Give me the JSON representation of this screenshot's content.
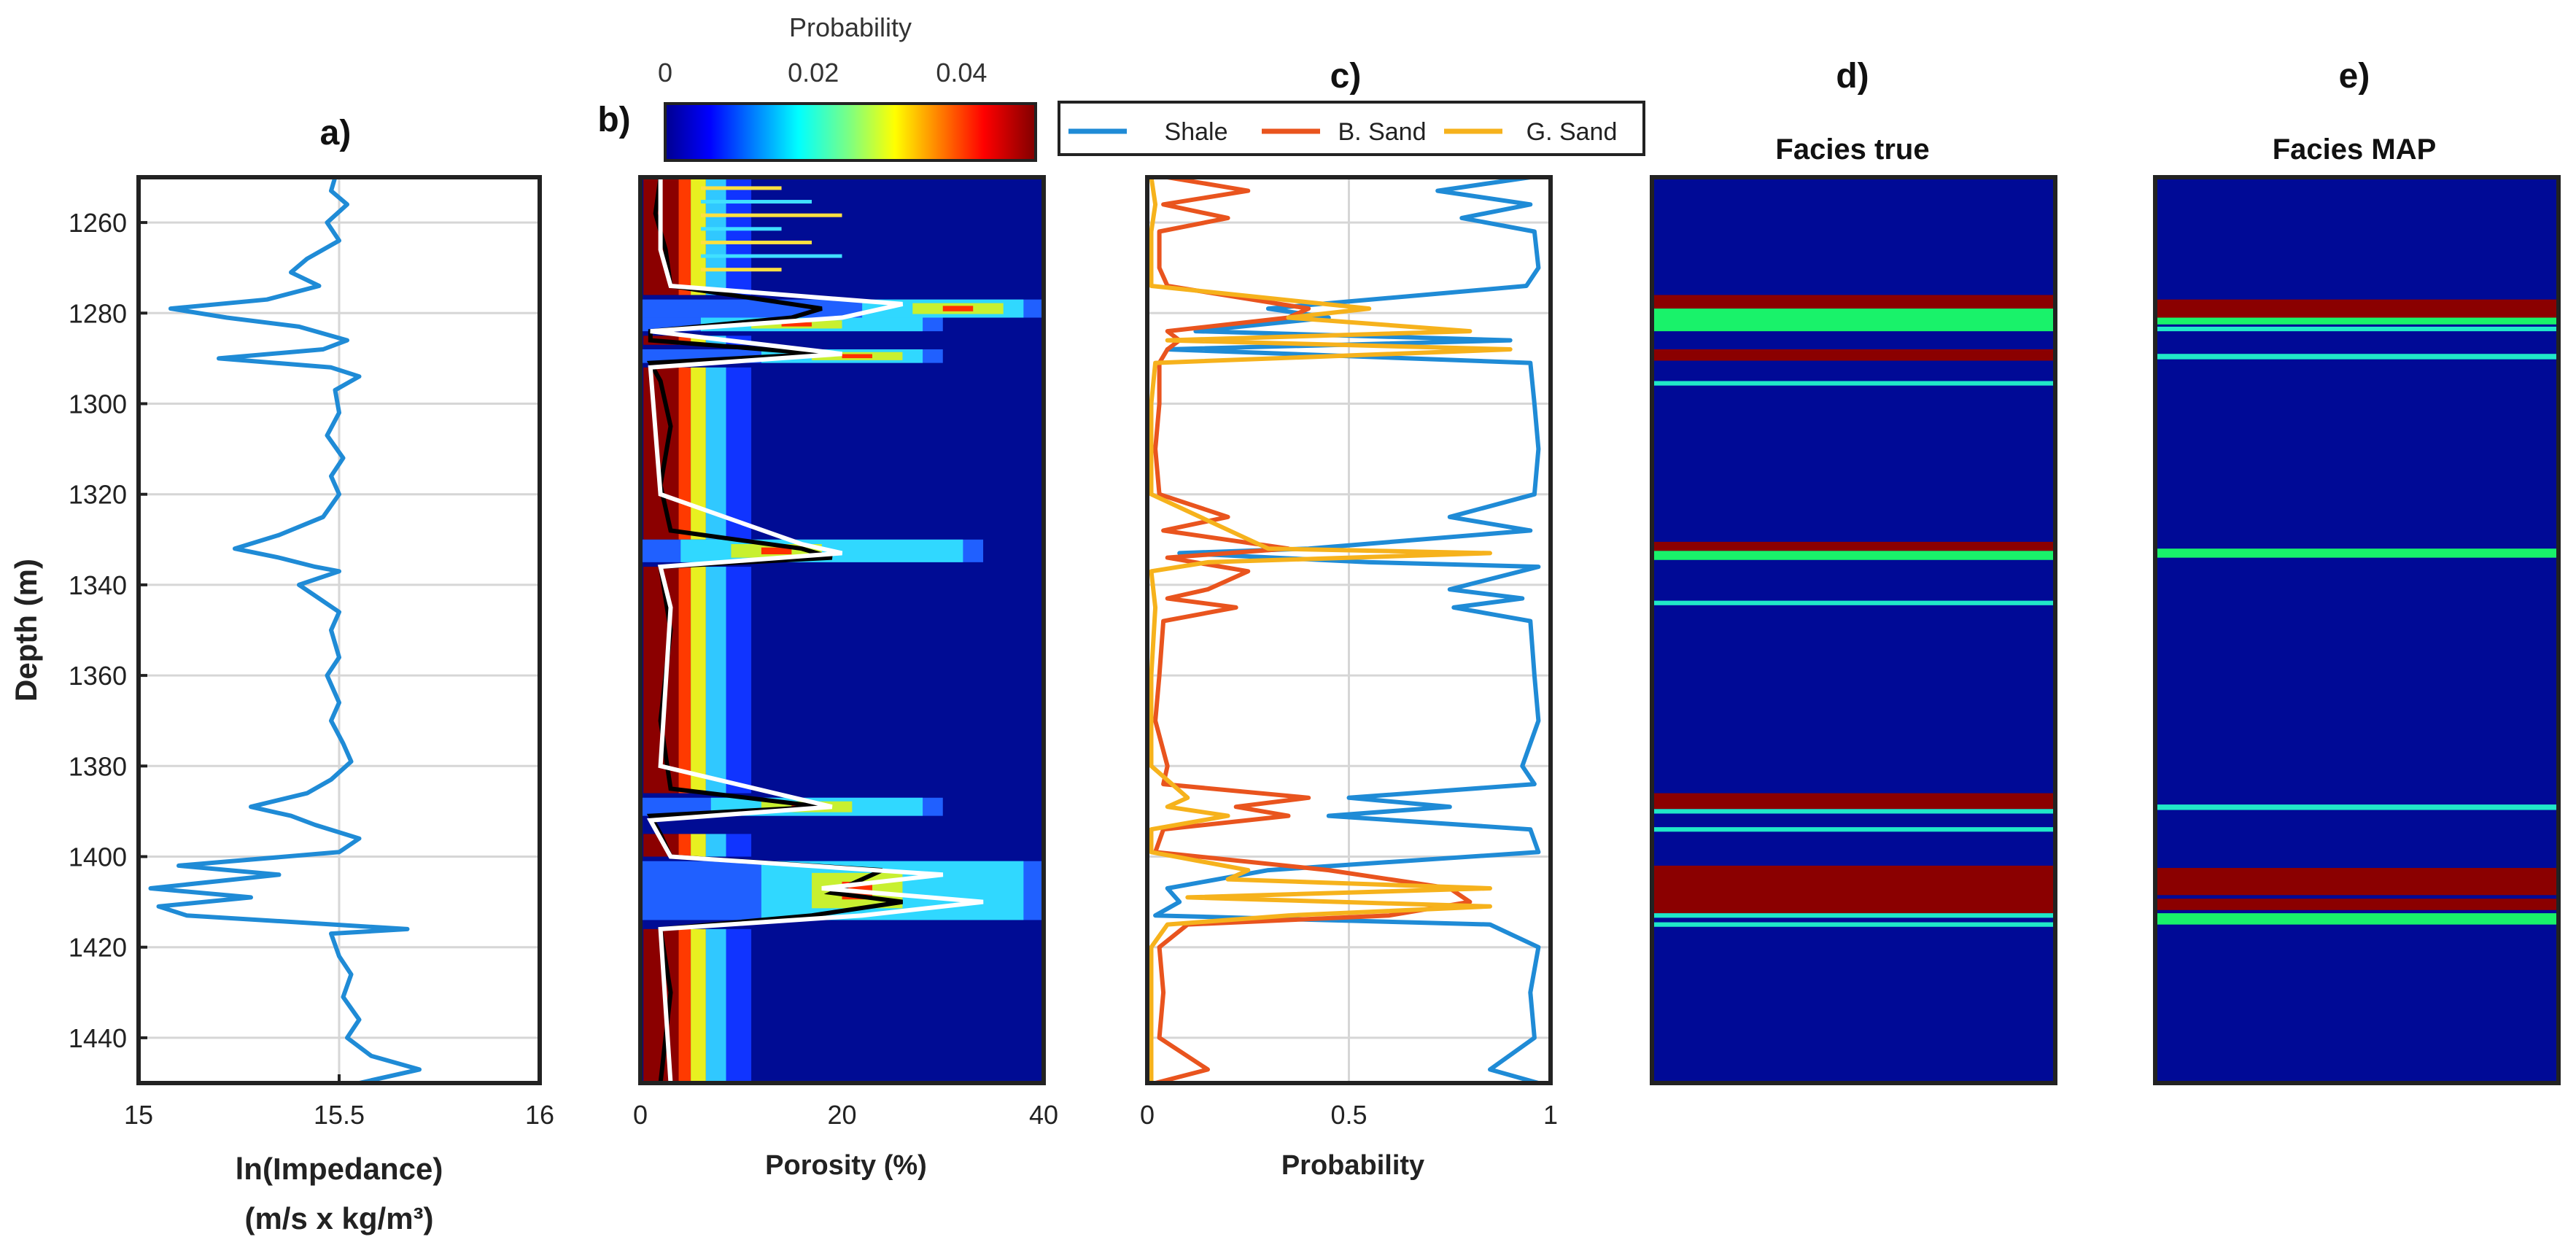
{
  "colors": {
    "blue_line": "#1f8bd6",
    "orange": "#e9541e",
    "yellow": "#f6b21c",
    "navy": "#000a96",
    "darkred": "#8b0000",
    "green": "#17f060",
    "cyan": "#20e8c8",
    "grid": "#d6d6d6",
    "axis": "#222222"
  },
  "chart_data": [
    {
      "id": "a",
      "type": "line",
      "panel_label": "a)",
      "xlabel": "ln(Impedance)",
      "xlabel_units": "(m/s x kg/m³)",
      "ylabel": "Depth (m)",
      "xlim": [
        15,
        16
      ],
      "ylim": [
        1250,
        1450
      ],
      "xticks": [
        "15",
        "15.5",
        "16"
      ],
      "yticks": [
        "1260",
        "1280",
        "1300",
        "1320",
        "1340",
        "1360",
        "1380",
        "1400",
        "1420",
        "1440"
      ],
      "grid": true,
      "series": [
        {
          "name": "ln(Impedance)",
          "points": [
            [
              15.49,
              1250
            ],
            [
              15.48,
              1253
            ],
            [
              15.52,
              1256
            ],
            [
              15.47,
              1260
            ],
            [
              15.5,
              1264
            ],
            [
              15.42,
              1268
            ],
            [
              15.38,
              1271
            ],
            [
              15.45,
              1274
            ],
            [
              15.32,
              1277
            ],
            [
              15.08,
              1279
            ],
            [
              15.22,
              1281
            ],
            [
              15.4,
              1283
            ],
            [
              15.52,
              1286
            ],
            [
              15.46,
              1288
            ],
            [
              15.2,
              1290
            ],
            [
              15.48,
              1292
            ],
            [
              15.55,
              1294
            ],
            [
              15.49,
              1297
            ],
            [
              15.5,
              1302
            ],
            [
              15.47,
              1307
            ],
            [
              15.51,
              1312
            ],
            [
              15.48,
              1316
            ],
            [
              15.5,
              1320
            ],
            [
              15.46,
              1325
            ],
            [
              15.35,
              1329
            ],
            [
              15.24,
              1332
            ],
            [
              15.35,
              1334
            ],
            [
              15.44,
              1336
            ],
            [
              15.5,
              1337
            ],
            [
              15.4,
              1340
            ],
            [
              15.45,
              1343
            ],
            [
              15.5,
              1346
            ],
            [
              15.48,
              1350
            ],
            [
              15.5,
              1356
            ],
            [
              15.47,
              1360
            ],
            [
              15.5,
              1366
            ],
            [
              15.48,
              1370
            ],
            [
              15.51,
              1375
            ],
            [
              15.53,
              1379
            ],
            [
              15.48,
              1383
            ],
            [
              15.42,
              1386
            ],
            [
              15.28,
              1389
            ],
            [
              15.38,
              1391
            ],
            [
              15.44,
              1393
            ],
            [
              15.55,
              1396
            ],
            [
              15.5,
              1399
            ],
            [
              15.1,
              1402
            ],
            [
              15.35,
              1404
            ],
            [
              15.03,
              1407
            ],
            [
              15.28,
              1409
            ],
            [
              15.05,
              1411
            ],
            [
              15.12,
              1413
            ],
            [
              15.67,
              1416
            ],
            [
              15.48,
              1417
            ],
            [
              15.5,
              1422
            ],
            [
              15.53,
              1426
            ],
            [
              15.51,
              1431
            ],
            [
              15.55,
              1436
            ],
            [
              15.52,
              1440
            ],
            [
              15.58,
              1444
            ],
            [
              15.7,
              1447
            ],
            [
              15.55,
              1450
            ]
          ]
        }
      ]
    },
    {
      "id": "b",
      "type": "heatmap",
      "panel_label": "b)",
      "xlabel": "Porosity (%)",
      "xlim": [
        0,
        40
      ],
      "ylim": [
        1250,
        1450
      ],
      "xticks": [
        "0",
        "20",
        "40"
      ],
      "colorbar": {
        "title": "Probability",
        "ticks": [
          "0",
          "0.02",
          "0.04"
        ],
        "range": [
          0,
          0.05
        ]
      }
    },
    {
      "id": "c",
      "type": "line",
      "panel_label": "c)",
      "xlabel": "Probability",
      "xlim": [
        0,
        1
      ],
      "ylim": [
        1250,
        1450
      ],
      "xticks": [
        "0",
        "0.5",
        "1"
      ],
      "grid": true,
      "legend": [
        "Shale",
        "B. Sand",
        "G. Sand"
      ],
      "series": [
        {
          "name": "Shale",
          "points": [
            [
              0.95,
              1250
            ],
            [
              0.72,
              1253
            ],
            [
              0.95,
              1256
            ],
            [
              0.78,
              1259
            ],
            [
              0.96,
              1262
            ],
            [
              0.97,
              1270
            ],
            [
              0.94,
              1274
            ],
            [
              0.3,
              1279
            ],
            [
              0.45,
              1281
            ],
            [
              0.12,
              1284
            ],
            [
              0.9,
              1286
            ],
            [
              0.05,
              1288
            ],
            [
              0.95,
              1291
            ],
            [
              0.96,
              1300
            ],
            [
              0.97,
              1310
            ],
            [
              0.96,
              1320
            ],
            [
              0.75,
              1325
            ],
            [
              0.95,
              1328
            ],
            [
              0.4,
              1332
            ],
            [
              0.08,
              1333
            ],
            [
              0.55,
              1335
            ],
            [
              0.97,
              1336
            ],
            [
              0.75,
              1341
            ],
            [
              0.93,
              1343
            ],
            [
              0.76,
              1345
            ],
            [
              0.95,
              1348
            ],
            [
              0.96,
              1360
            ],
            [
              0.97,
              1370
            ],
            [
              0.93,
              1380
            ],
            [
              0.96,
              1384
            ],
            [
              0.5,
              1387
            ],
            [
              0.75,
              1389
            ],
            [
              0.45,
              1391
            ],
            [
              0.95,
              1394
            ],
            [
              0.97,
              1399
            ],
            [
              0.3,
              1403
            ],
            [
              0.05,
              1407
            ],
            [
              0.08,
              1410
            ],
            [
              0.02,
              1413
            ],
            [
              0.85,
              1415
            ],
            [
              0.97,
              1420
            ],
            [
              0.95,
              1430
            ],
            [
              0.96,
              1440
            ],
            [
              0.85,
              1447
            ],
            [
              0.97,
              1450
            ]
          ]
        },
        {
          "name": "B. Sand",
          "points": [
            [
              0.05,
              1250
            ],
            [
              0.25,
              1253
            ],
            [
              0.04,
              1256
            ],
            [
              0.2,
              1259
            ],
            [
              0.03,
              1262
            ],
            [
              0.03,
              1270
            ],
            [
              0.05,
              1274
            ],
            [
              0.4,
              1279
            ],
            [
              0.35,
              1281
            ],
            [
              0.05,
              1284
            ],
            [
              0.08,
              1286
            ],
            [
              0.05,
              1288
            ],
            [
              0.03,
              1291
            ],
            [
              0.03,
              1300
            ],
            [
              0.02,
              1310
            ],
            [
              0.03,
              1320
            ],
            [
              0.2,
              1325
            ],
            [
              0.04,
              1328
            ],
            [
              0.35,
              1332
            ],
            [
              0.05,
              1334
            ],
            [
              0.25,
              1337
            ],
            [
              0.15,
              1341
            ],
            [
              0.05,
              1343
            ],
            [
              0.22,
              1345
            ],
            [
              0.04,
              1348
            ],
            [
              0.03,
              1360
            ],
            [
              0.02,
              1370
            ],
            [
              0.05,
              1380
            ],
            [
              0.04,
              1384
            ],
            [
              0.4,
              1387
            ],
            [
              0.22,
              1389
            ],
            [
              0.35,
              1391
            ],
            [
              0.04,
              1394
            ],
            [
              0.02,
              1399
            ],
            [
              0.45,
              1403
            ],
            [
              0.75,
              1407
            ],
            [
              0.8,
              1410
            ],
            [
              0.6,
              1413
            ],
            [
              0.1,
              1415
            ],
            [
              0.03,
              1420
            ],
            [
              0.04,
              1430
            ],
            [
              0.03,
              1440
            ],
            [
              0.15,
              1447
            ],
            [
              0.02,
              1450
            ]
          ]
        },
        {
          "name": "G. Sand",
          "points": [
            [
              0.01,
              1250
            ],
            [
              0.02,
              1256
            ],
            [
              0.01,
              1262
            ],
            [
              0.01,
              1274
            ],
            [
              0.55,
              1279
            ],
            [
              0.35,
              1281
            ],
            [
              0.8,
              1284
            ],
            [
              0.05,
              1286
            ],
            [
              0.9,
              1288
            ],
            [
              0.02,
              1291
            ],
            [
              0.01,
              1300
            ],
            [
              0.01,
              1320
            ],
            [
              0.3,
              1332
            ],
            [
              0.85,
              1333
            ],
            [
              0.15,
              1335
            ],
            [
              0.01,
              1337
            ],
            [
              0.02,
              1345
            ],
            [
              0.01,
              1360
            ],
            [
              0.01,
              1380
            ],
            [
              0.1,
              1387
            ],
            [
              0.05,
              1389
            ],
            [
              0.2,
              1391
            ],
            [
              0.01,
              1394
            ],
            [
              0.01,
              1399
            ],
            [
              0.25,
              1403
            ],
            [
              0.2,
              1405
            ],
            [
              0.85,
              1407
            ],
            [
              0.1,
              1409
            ],
            [
              0.85,
              1411
            ],
            [
              0.35,
              1413
            ],
            [
              0.05,
              1415
            ],
            [
              0.01,
              1420
            ],
            [
              0.01,
              1440
            ],
            [
              0.01,
              1450
            ]
          ]
        }
      ]
    },
    {
      "id": "d",
      "type": "heatmap",
      "panel_label": "d)",
      "title": "Facies true",
      "layers": [
        {
          "facies": "B. Sand",
          "from": 1276,
          "to": 1279
        },
        {
          "facies": "G. Sand",
          "from": 1279,
          "to": 1284
        },
        {
          "facies": "B. Sand",
          "from": 1288,
          "to": 1290.5
        },
        {
          "facies": "G. Sand",
          "from": 1295,
          "to": 1296
        },
        {
          "facies": "B. Sand",
          "from": 1330.5,
          "to": 1332.5
        },
        {
          "facies": "G. Sand",
          "from": 1332.5,
          "to": 1334.5
        },
        {
          "facies": "G. Sand",
          "from": 1343.5,
          "to": 1344.5
        },
        {
          "facies": "B. Sand",
          "from": 1386,
          "to": 1389.5
        },
        {
          "facies": "G. Sand",
          "from": 1389.5,
          "to": 1390.5
        },
        {
          "facies": "G. Sand",
          "from": 1393.5,
          "to": 1394.5
        },
        {
          "facies": "B. Sand",
          "from": 1402,
          "to": 1412.5
        },
        {
          "facies": "G. Sand",
          "from": 1412.5,
          "to": 1413.5
        },
        {
          "facies": "G. Sand",
          "from": 1414.5,
          "to": 1415.5
        }
      ]
    },
    {
      "id": "e",
      "type": "heatmap",
      "panel_label": "e)",
      "title": "Facies MAP",
      "layers": [
        {
          "facies": "B. Sand",
          "from": 1277,
          "to": 1281
        },
        {
          "facies": "G. Sand",
          "from": 1281,
          "to": 1282.5
        },
        {
          "facies": "G. Sand",
          "from": 1283,
          "to": 1284
        },
        {
          "facies": "G. Sand",
          "from": 1289,
          "to": 1290.2
        },
        {
          "facies": "G. Sand",
          "from": 1332,
          "to": 1334
        },
        {
          "facies": "G. Sand",
          "from": 1388.5,
          "to": 1389.7
        },
        {
          "facies": "B. Sand",
          "from": 1402.5,
          "to": 1408.5
        },
        {
          "facies": "B. Sand",
          "from": 1409.3,
          "to": 1411.8
        },
        {
          "facies": "G. Sand",
          "from": 1412.5,
          "to": 1415
        }
      ]
    }
  ]
}
